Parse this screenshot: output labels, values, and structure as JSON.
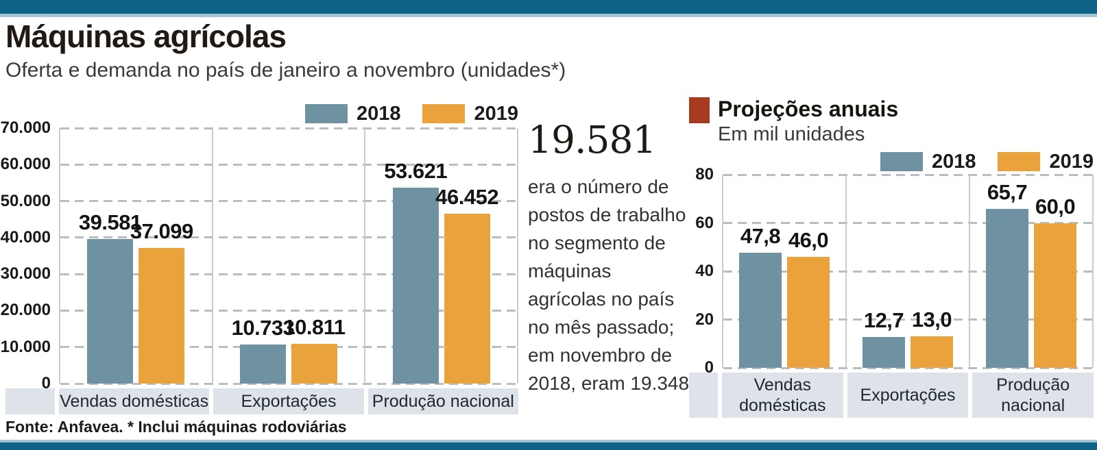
{
  "header": {
    "title": "Máquinas agrícolas",
    "subtitle": "Oferta e demanda no país de janeiro a novembro (unidades*)"
  },
  "colors": {
    "accent_teal": "#0e6286",
    "light_blue": "#a3c6d6",
    "series_2018": "#6f92a3",
    "series_2019": "#e9a23c",
    "projection_red": "#a83a1f",
    "category_band": "#dde3e9",
    "gridline": "#b9bdbf"
  },
  "callout": {
    "number": "19.581",
    "text": "era o número de postos de trabalho no segmento de máquinas agrícolas no país no mês passado; em novembro de 2018, eram 19.348"
  },
  "projections": {
    "title": "Projeções anuais",
    "subtitle": "Em mil unidades"
  },
  "footer": {
    "text": "Fonte: Anfavea. * Inclui máquinas rodoviárias"
  },
  "chart_data": [
    {
      "id": "left",
      "type": "bar",
      "title": "Oferta e demanda no país de janeiro a novembro (unidades*)",
      "xlabel": "",
      "ylabel": "unidades",
      "ylim": [
        0,
        70000
      ],
      "grid": true,
      "legend_position": "top-right",
      "categories": [
        [
          "Vendas domésticas"
        ],
        [
          "Exportações"
        ],
        [
          "Produção nacional"
        ]
      ],
      "yticks": [
        {
          "v": 70000,
          "label": "70.000"
        },
        {
          "v": 60000,
          "label": "60.000"
        },
        {
          "v": 50000,
          "label": "50.000"
        },
        {
          "v": 40000,
          "label": "40.000"
        },
        {
          "v": 30000,
          "label": "30.000"
        },
        {
          "v": 20000,
          "label": "20.000"
        },
        {
          "v": 10000,
          "label": "10.000"
        },
        {
          "v": 0,
          "label": "0"
        }
      ],
      "series": [
        {
          "name": "2018",
          "color": "#6f92a3",
          "values": [
            39581,
            10733,
            53621
          ],
          "labels": [
            "39.581",
            "10.733",
            "53.621"
          ]
        },
        {
          "name": "2019",
          "color": "#e9a23c",
          "values": [
            37099,
            10811,
            46452
          ],
          "labels": [
            "37.099",
            "10.811",
            "46.452"
          ]
        }
      ]
    },
    {
      "id": "right",
      "type": "bar",
      "title": "Projeções anuais",
      "xlabel": "",
      "ylabel": "mil unidades",
      "ylim": [
        0,
        80
      ],
      "grid": true,
      "legend_position": "top-right",
      "categories": [
        [
          "Vendas",
          "domésticas"
        ],
        [
          "Exportações"
        ],
        [
          "Produção",
          "nacional"
        ]
      ],
      "yticks": [
        {
          "v": 80,
          "label": "80"
        },
        {
          "v": 60,
          "label": "60"
        },
        {
          "v": 40,
          "label": "40"
        },
        {
          "v": 20,
          "label": "20"
        },
        {
          "v": 0,
          "label": "0"
        }
      ],
      "series": [
        {
          "name": "2018",
          "color": "#6f92a3",
          "values": [
            47.8,
            12.7,
            65.7
          ],
          "labels": [
            "47,8",
            "12,7",
            "65,7"
          ]
        },
        {
          "name": "2019",
          "color": "#e9a23c",
          "values": [
            46.0,
            13.0,
            60.0
          ],
          "labels": [
            "46,0",
            "13,0",
            "60,0"
          ]
        }
      ]
    }
  ]
}
